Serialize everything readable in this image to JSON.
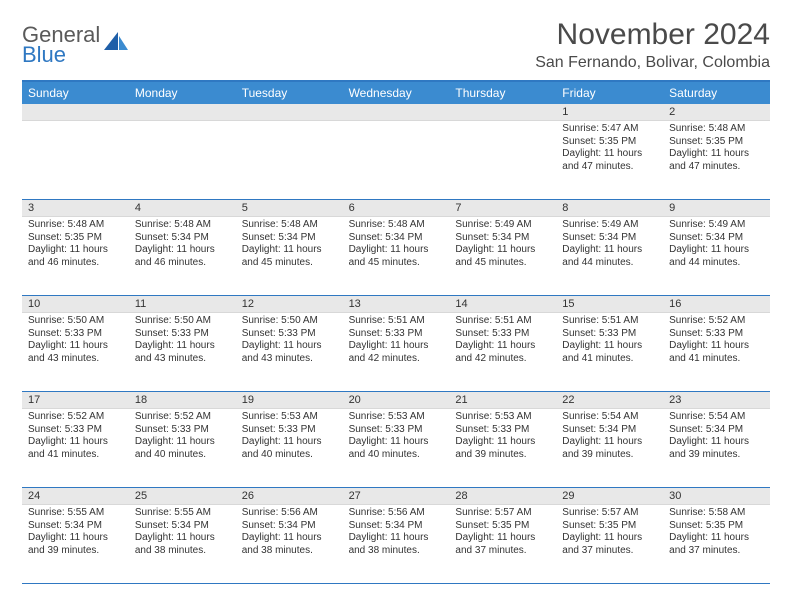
{
  "logo": {
    "line1": "General",
    "line2": "Blue"
  },
  "title": "November 2024",
  "location": "San Fernando, Bolivar, Colombia",
  "colors": {
    "header_bar": "#3b8bd0",
    "accent_border": "#2f78c2",
    "daynum_bg": "#e8e8e8",
    "text": "#333333",
    "logo_gray": "#5a5a5a",
    "logo_blue": "#2f78c2"
  },
  "weekdays": [
    "Sunday",
    "Monday",
    "Tuesday",
    "Wednesday",
    "Thursday",
    "Friday",
    "Saturday"
  ],
  "weeks": [
    [
      null,
      null,
      null,
      null,
      null,
      {
        "n": "1",
        "sr": "Sunrise: 5:47 AM",
        "ss": "Sunset: 5:35 PM",
        "d1": "Daylight: 11 hours",
        "d2": "and 47 minutes."
      },
      {
        "n": "2",
        "sr": "Sunrise: 5:48 AM",
        "ss": "Sunset: 5:35 PM",
        "d1": "Daylight: 11 hours",
        "d2": "and 47 minutes."
      }
    ],
    [
      {
        "n": "3",
        "sr": "Sunrise: 5:48 AM",
        "ss": "Sunset: 5:35 PM",
        "d1": "Daylight: 11 hours",
        "d2": "and 46 minutes."
      },
      {
        "n": "4",
        "sr": "Sunrise: 5:48 AM",
        "ss": "Sunset: 5:34 PM",
        "d1": "Daylight: 11 hours",
        "d2": "and 46 minutes."
      },
      {
        "n": "5",
        "sr": "Sunrise: 5:48 AM",
        "ss": "Sunset: 5:34 PM",
        "d1": "Daylight: 11 hours",
        "d2": "and 45 minutes."
      },
      {
        "n": "6",
        "sr": "Sunrise: 5:48 AM",
        "ss": "Sunset: 5:34 PM",
        "d1": "Daylight: 11 hours",
        "d2": "and 45 minutes."
      },
      {
        "n": "7",
        "sr": "Sunrise: 5:49 AM",
        "ss": "Sunset: 5:34 PM",
        "d1": "Daylight: 11 hours",
        "d2": "and 45 minutes."
      },
      {
        "n": "8",
        "sr": "Sunrise: 5:49 AM",
        "ss": "Sunset: 5:34 PM",
        "d1": "Daylight: 11 hours",
        "d2": "and 44 minutes."
      },
      {
        "n": "9",
        "sr": "Sunrise: 5:49 AM",
        "ss": "Sunset: 5:34 PM",
        "d1": "Daylight: 11 hours",
        "d2": "and 44 minutes."
      }
    ],
    [
      {
        "n": "10",
        "sr": "Sunrise: 5:50 AM",
        "ss": "Sunset: 5:33 PM",
        "d1": "Daylight: 11 hours",
        "d2": "and 43 minutes."
      },
      {
        "n": "11",
        "sr": "Sunrise: 5:50 AM",
        "ss": "Sunset: 5:33 PM",
        "d1": "Daylight: 11 hours",
        "d2": "and 43 minutes."
      },
      {
        "n": "12",
        "sr": "Sunrise: 5:50 AM",
        "ss": "Sunset: 5:33 PM",
        "d1": "Daylight: 11 hours",
        "d2": "and 43 minutes."
      },
      {
        "n": "13",
        "sr": "Sunrise: 5:51 AM",
        "ss": "Sunset: 5:33 PM",
        "d1": "Daylight: 11 hours",
        "d2": "and 42 minutes."
      },
      {
        "n": "14",
        "sr": "Sunrise: 5:51 AM",
        "ss": "Sunset: 5:33 PM",
        "d1": "Daylight: 11 hours",
        "d2": "and 42 minutes."
      },
      {
        "n": "15",
        "sr": "Sunrise: 5:51 AM",
        "ss": "Sunset: 5:33 PM",
        "d1": "Daylight: 11 hours",
        "d2": "and 41 minutes."
      },
      {
        "n": "16",
        "sr": "Sunrise: 5:52 AM",
        "ss": "Sunset: 5:33 PM",
        "d1": "Daylight: 11 hours",
        "d2": "and 41 minutes."
      }
    ],
    [
      {
        "n": "17",
        "sr": "Sunrise: 5:52 AM",
        "ss": "Sunset: 5:33 PM",
        "d1": "Daylight: 11 hours",
        "d2": "and 41 minutes."
      },
      {
        "n": "18",
        "sr": "Sunrise: 5:52 AM",
        "ss": "Sunset: 5:33 PM",
        "d1": "Daylight: 11 hours",
        "d2": "and 40 minutes."
      },
      {
        "n": "19",
        "sr": "Sunrise: 5:53 AM",
        "ss": "Sunset: 5:33 PM",
        "d1": "Daylight: 11 hours",
        "d2": "and 40 minutes."
      },
      {
        "n": "20",
        "sr": "Sunrise: 5:53 AM",
        "ss": "Sunset: 5:33 PM",
        "d1": "Daylight: 11 hours",
        "d2": "and 40 minutes."
      },
      {
        "n": "21",
        "sr": "Sunrise: 5:53 AM",
        "ss": "Sunset: 5:33 PM",
        "d1": "Daylight: 11 hours",
        "d2": "and 39 minutes."
      },
      {
        "n": "22",
        "sr": "Sunrise: 5:54 AM",
        "ss": "Sunset: 5:34 PM",
        "d1": "Daylight: 11 hours",
        "d2": "and 39 minutes."
      },
      {
        "n": "23",
        "sr": "Sunrise: 5:54 AM",
        "ss": "Sunset: 5:34 PM",
        "d1": "Daylight: 11 hours",
        "d2": "and 39 minutes."
      }
    ],
    [
      {
        "n": "24",
        "sr": "Sunrise: 5:55 AM",
        "ss": "Sunset: 5:34 PM",
        "d1": "Daylight: 11 hours",
        "d2": "and 39 minutes."
      },
      {
        "n": "25",
        "sr": "Sunrise: 5:55 AM",
        "ss": "Sunset: 5:34 PM",
        "d1": "Daylight: 11 hours",
        "d2": "and 38 minutes."
      },
      {
        "n": "26",
        "sr": "Sunrise: 5:56 AM",
        "ss": "Sunset: 5:34 PM",
        "d1": "Daylight: 11 hours",
        "d2": "and 38 minutes."
      },
      {
        "n": "27",
        "sr": "Sunrise: 5:56 AM",
        "ss": "Sunset: 5:34 PM",
        "d1": "Daylight: 11 hours",
        "d2": "and 38 minutes."
      },
      {
        "n": "28",
        "sr": "Sunrise: 5:57 AM",
        "ss": "Sunset: 5:35 PM",
        "d1": "Daylight: 11 hours",
        "d2": "and 37 minutes."
      },
      {
        "n": "29",
        "sr": "Sunrise: 5:57 AM",
        "ss": "Sunset: 5:35 PM",
        "d1": "Daylight: 11 hours",
        "d2": "and 37 minutes."
      },
      {
        "n": "30",
        "sr": "Sunrise: 5:58 AM",
        "ss": "Sunset: 5:35 PM",
        "d1": "Daylight: 11 hours",
        "d2": "and 37 minutes."
      }
    ]
  ]
}
